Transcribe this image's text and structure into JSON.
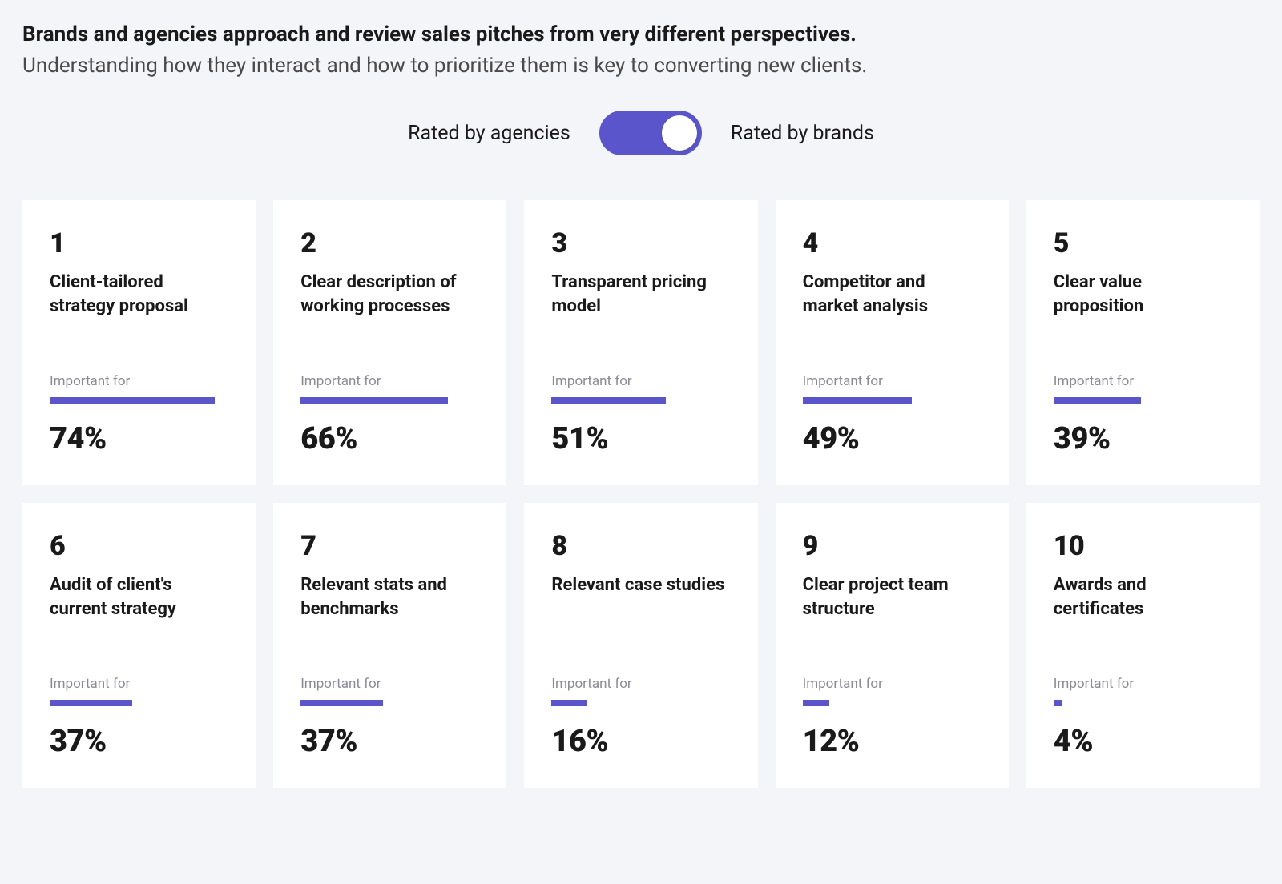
{
  "page_bg": "#f4f5f8",
  "heading": {
    "bold": "Brands and agencies approach and review sales pitches from very different perspectives.",
    "light": "Understanding how they interact and how to prioritize them is key to converting new clients."
  },
  "toggle": {
    "left_label": "Rated by agencies",
    "right_label": "Rated by brands",
    "state": "right",
    "track_color": "#5a55ca",
    "knob_color": "#ffffff"
  },
  "cards_meta": {
    "type": "ranked-infographic-cards",
    "sub_label": "Important for",
    "bar_color": "#5a55ca",
    "bar_max_scale_pct": 80,
    "card_bg": "#ffffff",
    "rank_fontsize_pt": 26,
    "title_fontsize_pt": 17,
    "sublabel_fontsize_pt": 13,
    "pct_fontsize_pt": 29,
    "sublabel_color": "#8a8a96",
    "text_color": "#1a1a1a"
  },
  "cards": [
    {
      "rank": "1",
      "title": "Client-tailored strategy proposal",
      "pct": 74,
      "pct_label": "74%"
    },
    {
      "rank": "2",
      "title": "Clear description of working processes",
      "pct": 66,
      "pct_label": "66%"
    },
    {
      "rank": "3",
      "title": "Transparent pricing model",
      "pct": 51,
      "pct_label": "51%"
    },
    {
      "rank": "4",
      "title": "Competitor and market analysis",
      "pct": 49,
      "pct_label": "49%"
    },
    {
      "rank": "5",
      "title": "Clear value proposition",
      "pct": 39,
      "pct_label": "39%"
    },
    {
      "rank": "6",
      "title": "Audit of client's current strategy",
      "pct": 37,
      "pct_label": "37%"
    },
    {
      "rank": "7",
      "title": "Relevant stats and benchmarks",
      "pct": 37,
      "pct_label": "37%"
    },
    {
      "rank": "8",
      "title": "Relevant case studies",
      "pct": 16,
      "pct_label": "16%"
    },
    {
      "rank": "9",
      "title": "Clear project team structure",
      "pct": 12,
      "pct_label": "12%"
    },
    {
      "rank": "10",
      "title": "Awards and certificates",
      "pct": 4,
      "pct_label": "4%"
    }
  ]
}
